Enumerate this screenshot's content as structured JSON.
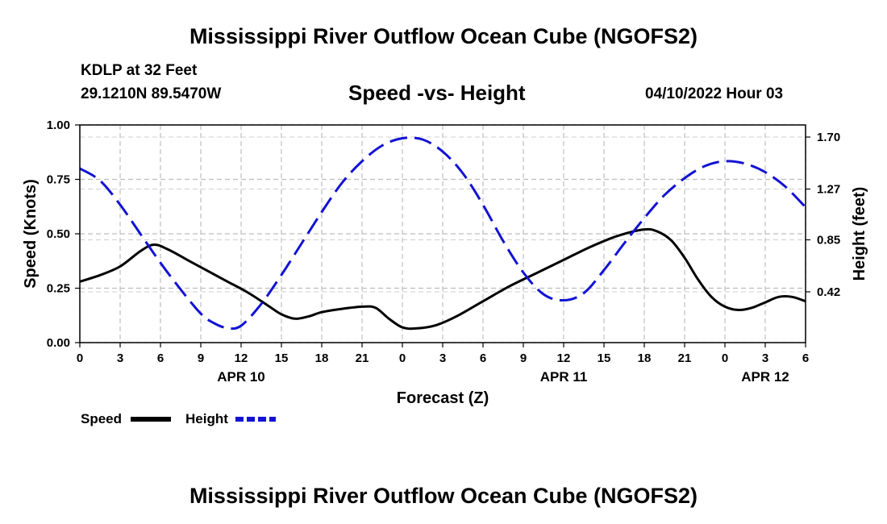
{
  "header": {
    "title": "Mississippi River Outflow Ocean Cube (NGOFS2)",
    "station": "KDLP at 32 Feet",
    "coords": "29.1210N  89.5470W",
    "subtitle": "Speed -vs- Height",
    "datetime": "04/10/2022 Hour 03"
  },
  "footer": {
    "title": "Mississippi River Outflow Ocean Cube (NGOFS2)"
  },
  "chart_data": {
    "type": "line",
    "title": "Speed -vs- Height",
    "xlabel": "Forecast (Z)",
    "ylabel": "Speed (Knots)",
    "y2label": "Height (feet)",
    "xlim": [
      0,
      54
    ],
    "ylim": [
      0,
      1
    ],
    "y2lim": [
      0.0,
      1.8
    ],
    "grid": true,
    "x_ticks": [
      0,
      3,
      6,
      9,
      12,
      15,
      18,
      21,
      24,
      27,
      30,
      33,
      36,
      39,
      42,
      45,
      48,
      51,
      54
    ],
    "x_tick_labels": [
      "0",
      "3",
      "6",
      "9",
      "12",
      "15",
      "18",
      "21",
      "0",
      "3",
      "6",
      "9",
      "12",
      "15",
      "18",
      "21",
      "0",
      "3",
      "6"
    ],
    "y_ticks": [
      0.0,
      0.25,
      0.5,
      0.75,
      1.0
    ],
    "y_tick_labels": [
      "0.00",
      "0.25",
      "0.50",
      "0.75",
      "1.00"
    ],
    "y2_ticks": [
      0.42,
      0.85,
      1.27,
      1.7
    ],
    "y2_tick_labels": [
      "0.42",
      "0.85",
      "1.27",
      "1.70"
    ],
    "date_labels": [
      {
        "x": 12,
        "label": "APR 10"
      },
      {
        "x": 36,
        "label": "APR 11"
      },
      {
        "x": 51,
        "label": "APR 12"
      }
    ],
    "legend": {
      "position": "bottom-left",
      "entries": [
        "Speed",
        "Height"
      ]
    },
    "series": [
      {
        "name": "Speed",
        "axis": "left",
        "color": "#000000",
        "dash": "solid",
        "x": [
          0,
          1.5,
          3,
          4.5,
          5.5,
          6.5,
          8,
          9.5,
          11,
          12.5,
          14,
          15,
          16,
          17,
          18,
          19.5,
          21,
          22,
          23,
          24,
          25,
          26.5,
          28,
          30,
          32,
          34,
          36,
          38,
          40,
          42,
          43,
          44,
          45,
          46,
          47,
          48,
          49,
          50,
          51,
          52,
          53,
          54
        ],
        "y": [
          0.28,
          0.31,
          0.35,
          0.42,
          0.45,
          0.43,
          0.38,
          0.33,
          0.28,
          0.23,
          0.17,
          0.13,
          0.11,
          0.12,
          0.14,
          0.155,
          0.165,
          0.16,
          0.11,
          0.07,
          0.065,
          0.08,
          0.12,
          0.19,
          0.26,
          0.32,
          0.38,
          0.44,
          0.49,
          0.52,
          0.51,
          0.47,
          0.39,
          0.29,
          0.21,
          0.165,
          0.15,
          0.16,
          0.185,
          0.21,
          0.21,
          0.19
        ]
      },
      {
        "name": "Height",
        "axis": "right",
        "color": "#1212d4",
        "dash": "dashed",
        "x": [
          0,
          1.5,
          3,
          4.5,
          6,
          7.5,
          9,
          10,
          11,
          12,
          13.5,
          15,
          16.5,
          18,
          19.5,
          21,
          22.5,
          24,
          25.5,
          27,
          28.5,
          30,
          31.5,
          33,
          34.5,
          36,
          37.5,
          39,
          40.5,
          42,
          43.5,
          45,
          46.5,
          48,
          49.5,
          51,
          52.5,
          54
        ],
        "y": [
          1.44,
          1.34,
          1.14,
          0.9,
          0.66,
          0.44,
          0.24,
          0.16,
          0.12,
          0.14,
          0.32,
          0.56,
          0.82,
          1.08,
          1.32,
          1.5,
          1.63,
          1.69,
          1.68,
          1.58,
          1.4,
          1.14,
          0.84,
          0.58,
          0.4,
          0.35,
          0.41,
          0.6,
          0.82,
          1.03,
          1.22,
          1.36,
          1.46,
          1.5,
          1.48,
          1.41,
          1.29,
          1.12
        ]
      }
    ]
  }
}
